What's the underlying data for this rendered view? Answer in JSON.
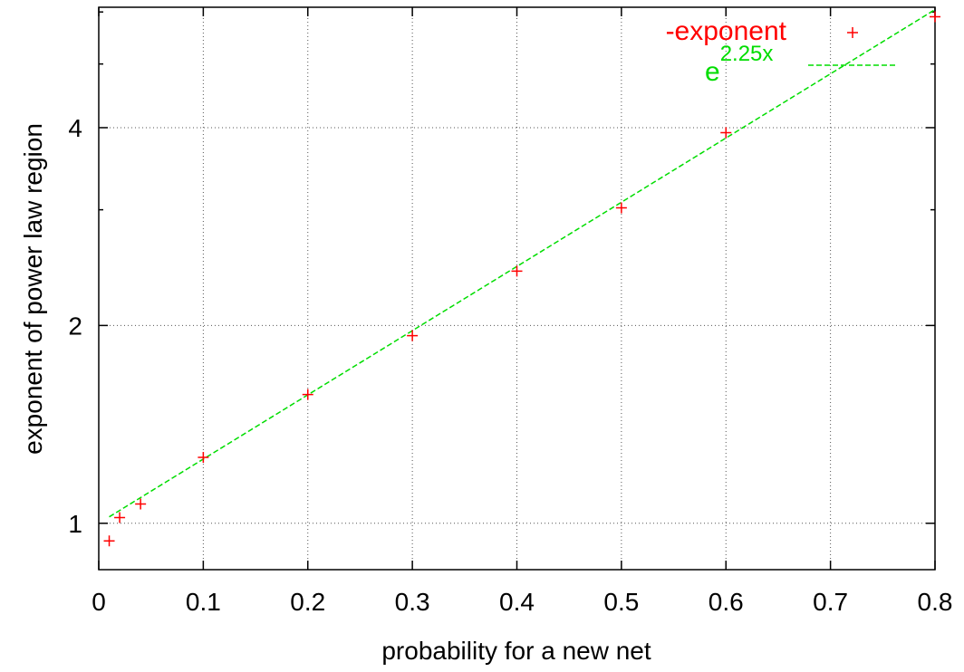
{
  "chart_data": {
    "type": "scatter",
    "xlabel": "probability for a new net",
    "ylabel": "exponent of power law region",
    "xlim": [
      0,
      0.8
    ],
    "ylim": [
      0.85,
      6.1
    ],
    "y_scale": "log",
    "grid": true,
    "legend_position": "top-right",
    "x_ticks": [
      {
        "value": 0,
        "label": "0"
      },
      {
        "value": 0.1,
        "label": "0.1"
      },
      {
        "value": 0.2,
        "label": "0.2"
      },
      {
        "value": 0.3,
        "label": "0.3"
      },
      {
        "value": 0.4,
        "label": "0.4"
      },
      {
        "value": 0.5,
        "label": "0.5"
      },
      {
        "value": 0.6,
        "label": "0.6"
      },
      {
        "value": 0.7,
        "label": "0.7"
      },
      {
        "value": 0.8,
        "label": "0.8"
      }
    ],
    "y_ticks": [
      {
        "value": 1,
        "label": "1"
      },
      {
        "value": 2,
        "label": "2"
      },
      {
        "value": 4,
        "label": "4"
      }
    ],
    "y_minor_ticks": [
      3,
      5,
      6
    ],
    "series": [
      {
        "name": "-exponent",
        "color": "#ff0000",
        "marker": "plus",
        "x": [
          0.01,
          0.02,
          0.04,
          0.1,
          0.2,
          0.3,
          0.4,
          0.5,
          0.6,
          0.8
        ],
        "y": [
          0.94,
          1.02,
          1.07,
          1.26,
          1.57,
          1.93,
          2.42,
          3.02,
          3.93,
          5.9
        ]
      },
      {
        "name": "e",
        "name_superscript": "2.25x",
        "color": "#00dd00",
        "style": "dashed",
        "function": "exp(2.25*x)",
        "x_range": [
          0.01,
          0.8
        ]
      }
    ]
  }
}
